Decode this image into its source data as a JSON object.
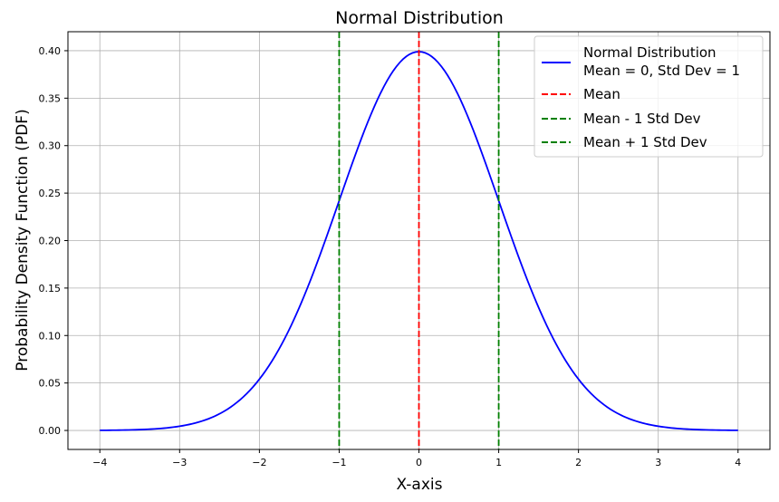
{
  "chart_data": {
    "type": "line",
    "title": "Normal Distribution",
    "xlabel": "X-axis",
    "ylabel": "Probability Density Function (PDF)",
    "xlim": [
      -4.4,
      4.4
    ],
    "ylim": [
      -0.02,
      0.42
    ],
    "grid": true,
    "legend_position": "top-right",
    "xticks": [
      -4,
      -3,
      -2,
      -1,
      0,
      1,
      2,
      3,
      4
    ],
    "xtick_labels": [
      "−4",
      "−3",
      "−2",
      "−1",
      "0",
      "1",
      "2",
      "3",
      "4"
    ],
    "yticks": [
      0.0,
      0.05,
      0.1,
      0.15,
      0.2,
      0.25,
      0.3,
      0.35,
      0.4
    ],
    "ytick_labels": [
      "0.00",
      "0.05",
      "0.10",
      "0.15",
      "0.20",
      "0.25",
      "0.30",
      "0.35",
      "0.40"
    ],
    "series": [
      {
        "name": "Normal Distribution\nMean = 0, Std Dev = 1",
        "color": "#0000ff",
        "style": "solid",
        "x": [
          -4.0,
          -3.75,
          -3.5,
          -3.25,
          -3.0,
          -2.75,
          -2.5,
          -2.25,
          -2.0,
          -1.75,
          -1.5,
          -1.25,
          -1.0,
          -0.75,
          -0.5,
          -0.25,
          0.0,
          0.25,
          0.5,
          0.75,
          1.0,
          1.25,
          1.5,
          1.75,
          2.0,
          2.25,
          2.5,
          2.75,
          3.0,
          3.25,
          3.5,
          3.75,
          4.0
        ],
        "y": [
          0.0001,
          0.0004,
          0.0009,
          0.002,
          0.0044,
          0.0091,
          0.0175,
          0.0317,
          0.054,
          0.0863,
          0.1295,
          0.1826,
          0.242,
          0.3011,
          0.3521,
          0.3867,
          0.3989,
          0.3867,
          0.3521,
          0.3011,
          0.242,
          0.1826,
          0.1295,
          0.0863,
          0.054,
          0.0317,
          0.0175,
          0.0091,
          0.0044,
          0.002,
          0.0009,
          0.0004,
          0.0001
        ]
      }
    ],
    "vlines": [
      {
        "name": "Mean",
        "x": 0,
        "color": "#ff0000",
        "style": "dashed"
      },
      {
        "name": "Mean - 1 Std Dev",
        "x": -1,
        "color": "#008000",
        "style": "dashed"
      },
      {
        "name": "Mean + 1 Std Dev",
        "x": 1,
        "color": "#008000",
        "style": "dashed"
      }
    ]
  }
}
